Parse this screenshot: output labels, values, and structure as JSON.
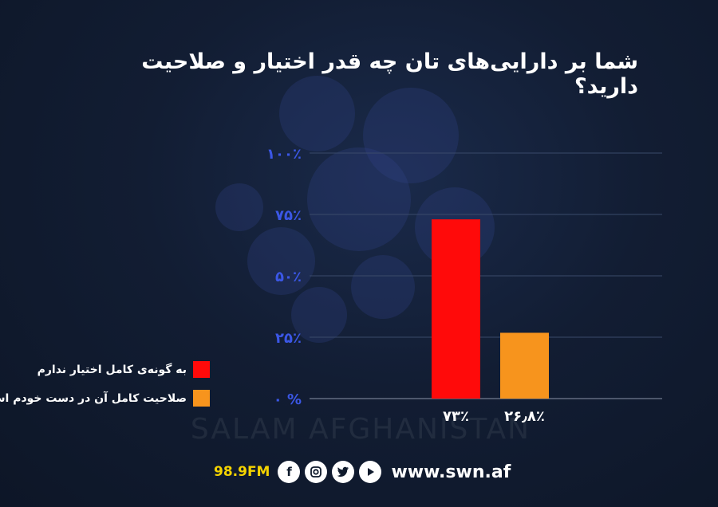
{
  "title": "شما بر دارایی‌های تان چه قدر اختیار و صلاحیت دارید؟",
  "chart_data": {
    "type": "bar",
    "title": "شما بر دارایی‌های تان چه قدر اختیار و صلاحیت دارید؟",
    "categories": [
      "به گونه‌ی کامل اختیار ندارم",
      "صلاحیت کامل آن در دست خودم است"
    ],
    "values": [
      73,
      26.8
    ],
    "value_labels": [
      "۷۳٪",
      "۲۶٫۸٪"
    ],
    "colors": [
      "#ff0a0a",
      "#f7941d"
    ],
    "ylim": [
      0,
      100
    ],
    "yticks": [
      0,
      25,
      50,
      75,
      100
    ],
    "ytick_labels": [
      "۰ %",
      "۲۵٪",
      "۵۰٪",
      "۷۵٪",
      "۱۰۰٪"
    ],
    "grid": true,
    "legend_position": "left"
  },
  "legend": [
    {
      "label": "به گونه‌ی کامل اختیار ندارم",
      "color": "#ff0a0a"
    },
    {
      "label": "صلاحیت کامل آن در دست خودم است",
      "color": "#f7941d"
    }
  ],
  "watermark": "SALAM AFGHANISTAN",
  "footer": {
    "frequency": "98.9FM",
    "social_icons": [
      "facebook-icon",
      "instagram-icon",
      "twitter-icon",
      "youtube-icon"
    ],
    "website": "www.swn.af"
  }
}
